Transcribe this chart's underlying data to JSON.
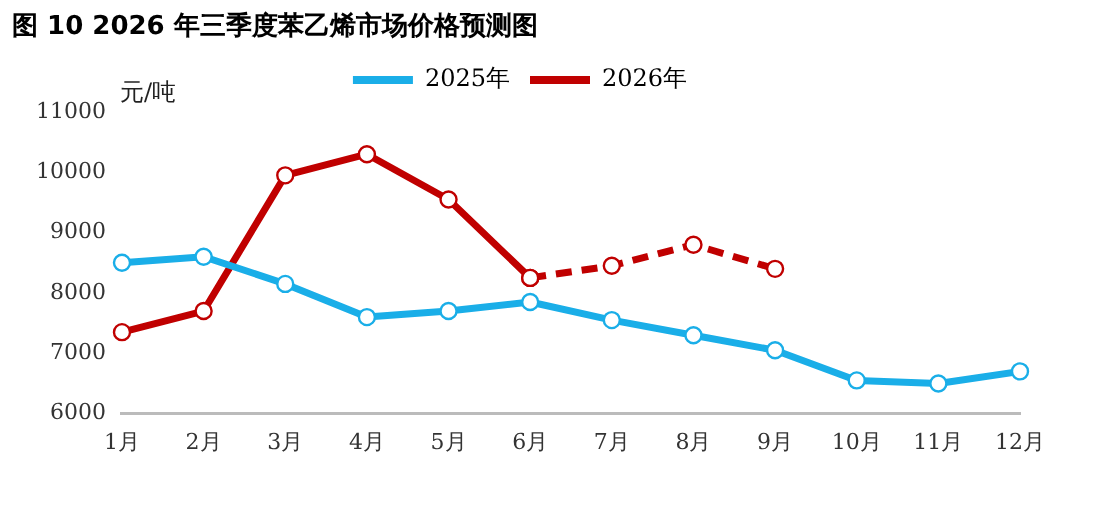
{
  "chart_data": {
    "type": "line",
    "title": "图 10 2026 年三季度苯乙烯市场价格预测图",
    "ylabel": "元/吨",
    "categories": [
      "1月",
      "2月",
      "3月",
      "4月",
      "5月",
      "6月",
      "7月",
      "8月",
      "9月",
      "10月",
      "11月",
      "12月"
    ],
    "series": [
      {
        "name": "2025年",
        "color": "#1aaee8",
        "values": [
          8500,
          8600,
          8150,
          7600,
          7700,
          7850,
          7550,
          7300,
          7050,
          6550,
          6500,
          6700
        ]
      },
      {
        "name": "2026年",
        "color": "#c00000",
        "values": [
          7350,
          7700,
          9950,
          10300,
          9550,
          8250,
          null,
          null,
          null,
          null,
          null,
          null
        ]
      },
      {
        "color": "#c00000",
        "line_style": "dashed",
        "values": [
          null,
          null,
          null,
          null,
          null,
          8250,
          8450,
          8800,
          8400,
          null,
          null,
          null
        ]
      }
    ],
    "ylim": [
      6000,
      11000
    ],
    "yticks": [
      6000,
      7000,
      8000,
      9000,
      10000,
      11000
    ],
    "grid": false,
    "legend": "top",
    "marker": "circle",
    "line_style": "solid"
  }
}
